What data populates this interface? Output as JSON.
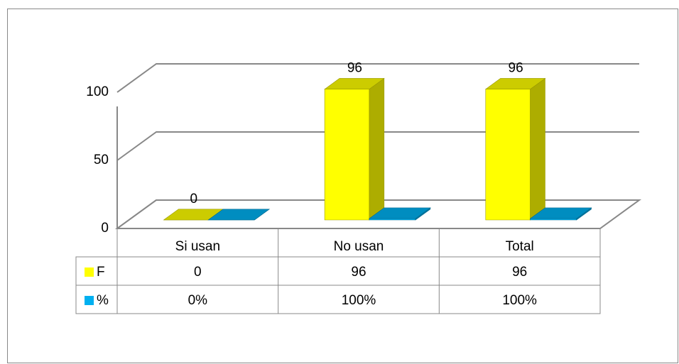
{
  "chart_data": {
    "type": "bar3d",
    "categories": [
      "Si usan",
      "No usan",
      "Total"
    ],
    "series": [
      {
        "name": "F",
        "color": "#ffff00",
        "values": [
          0,
          96,
          96
        ]
      },
      {
        "name": "%",
        "color": "#00b0f0",
        "values": [
          0,
          1,
          1
        ],
        "value_labels": [
          "0%",
          "100%",
          "100%"
        ]
      }
    ],
    "ylim": [
      0,
      100
    ],
    "yticks": [
      0,
      50,
      100
    ],
    "grid": true,
    "data_table": true
  }
}
